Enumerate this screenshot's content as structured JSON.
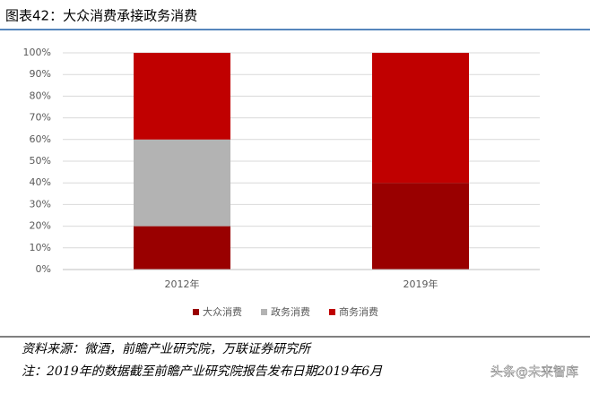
{
  "chart_data": {
    "type": "stacked-bar",
    "title": "图表42：大众消费承接政务消费",
    "categories": [
      "2012年",
      "2019年"
    ],
    "series": [
      {
        "name": "大众消费",
        "color": "#990000",
        "values": [
          20,
          40
        ]
      },
      {
        "name": "政务消费",
        "color": "#b3b3b3",
        "values": [
          40,
          0
        ]
      },
      {
        "name": "商务消费",
        "color": "#c00000",
        "values": [
          40,
          60
        ]
      }
    ],
    "ylim": [
      0,
      100
    ],
    "yticks": [
      {
        "value": 0,
        "label": "0%"
      },
      {
        "value": 10,
        "label": "10%"
      },
      {
        "value": 20,
        "label": "20%"
      },
      {
        "value": 30,
        "label": "30%"
      },
      {
        "value": 40,
        "label": "40%"
      },
      {
        "value": 50,
        "label": "50%"
      },
      {
        "value": 60,
        "label": "60%"
      },
      {
        "value": 70,
        "label": "70%"
      },
      {
        "value": 80,
        "label": "80%"
      },
      {
        "value": 90,
        "label": "90%"
      },
      {
        "value": 100,
        "label": "100%"
      }
    ],
    "grid": true,
    "legend": "bottom",
    "source": "资料来源：微酒，前瞻产业研究院，万联证券研究所",
    "note": "注：2019年的数据截至前瞻产业研究院报告发布日期2019年6月",
    "watermark": "头条@未来智库"
  }
}
